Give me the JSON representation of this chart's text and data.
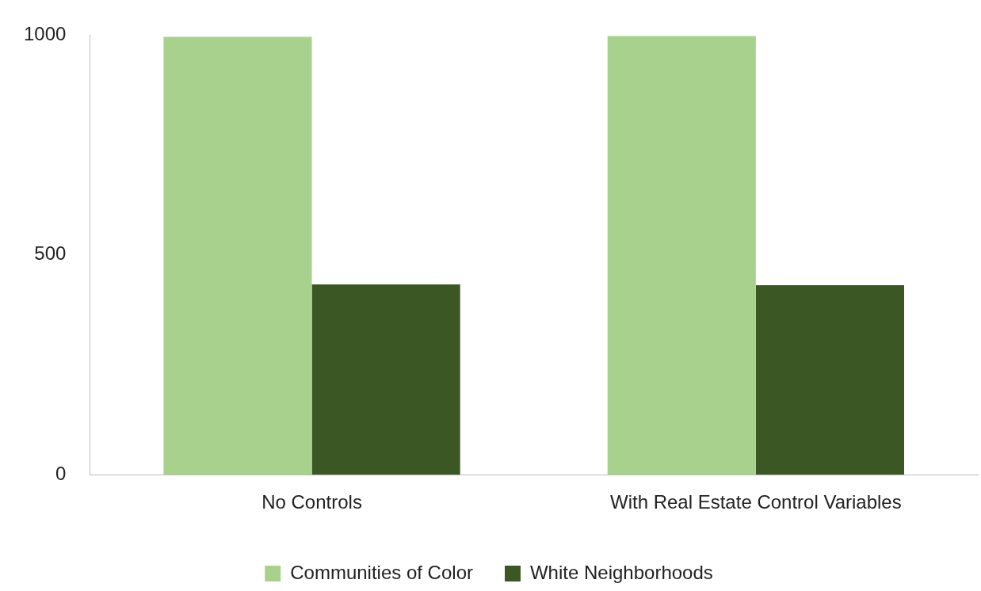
{
  "chart_data": {
    "type": "bar",
    "categories": [
      "No Controls",
      "With Real Estate Control Variables"
    ],
    "series": [
      {
        "name": "Communities of Color",
        "color": "#a9d18e",
        "values": [
          996,
          998
        ]
      },
      {
        "name": "White Neighborhoods",
        "color": "#3b5723",
        "values": [
          433,
          431
        ]
      }
    ],
    "ylim": [
      0,
      1000
    ],
    "yticks": [
      0,
      500,
      1000
    ],
    "grid": false,
    "legend": "bottom"
  }
}
